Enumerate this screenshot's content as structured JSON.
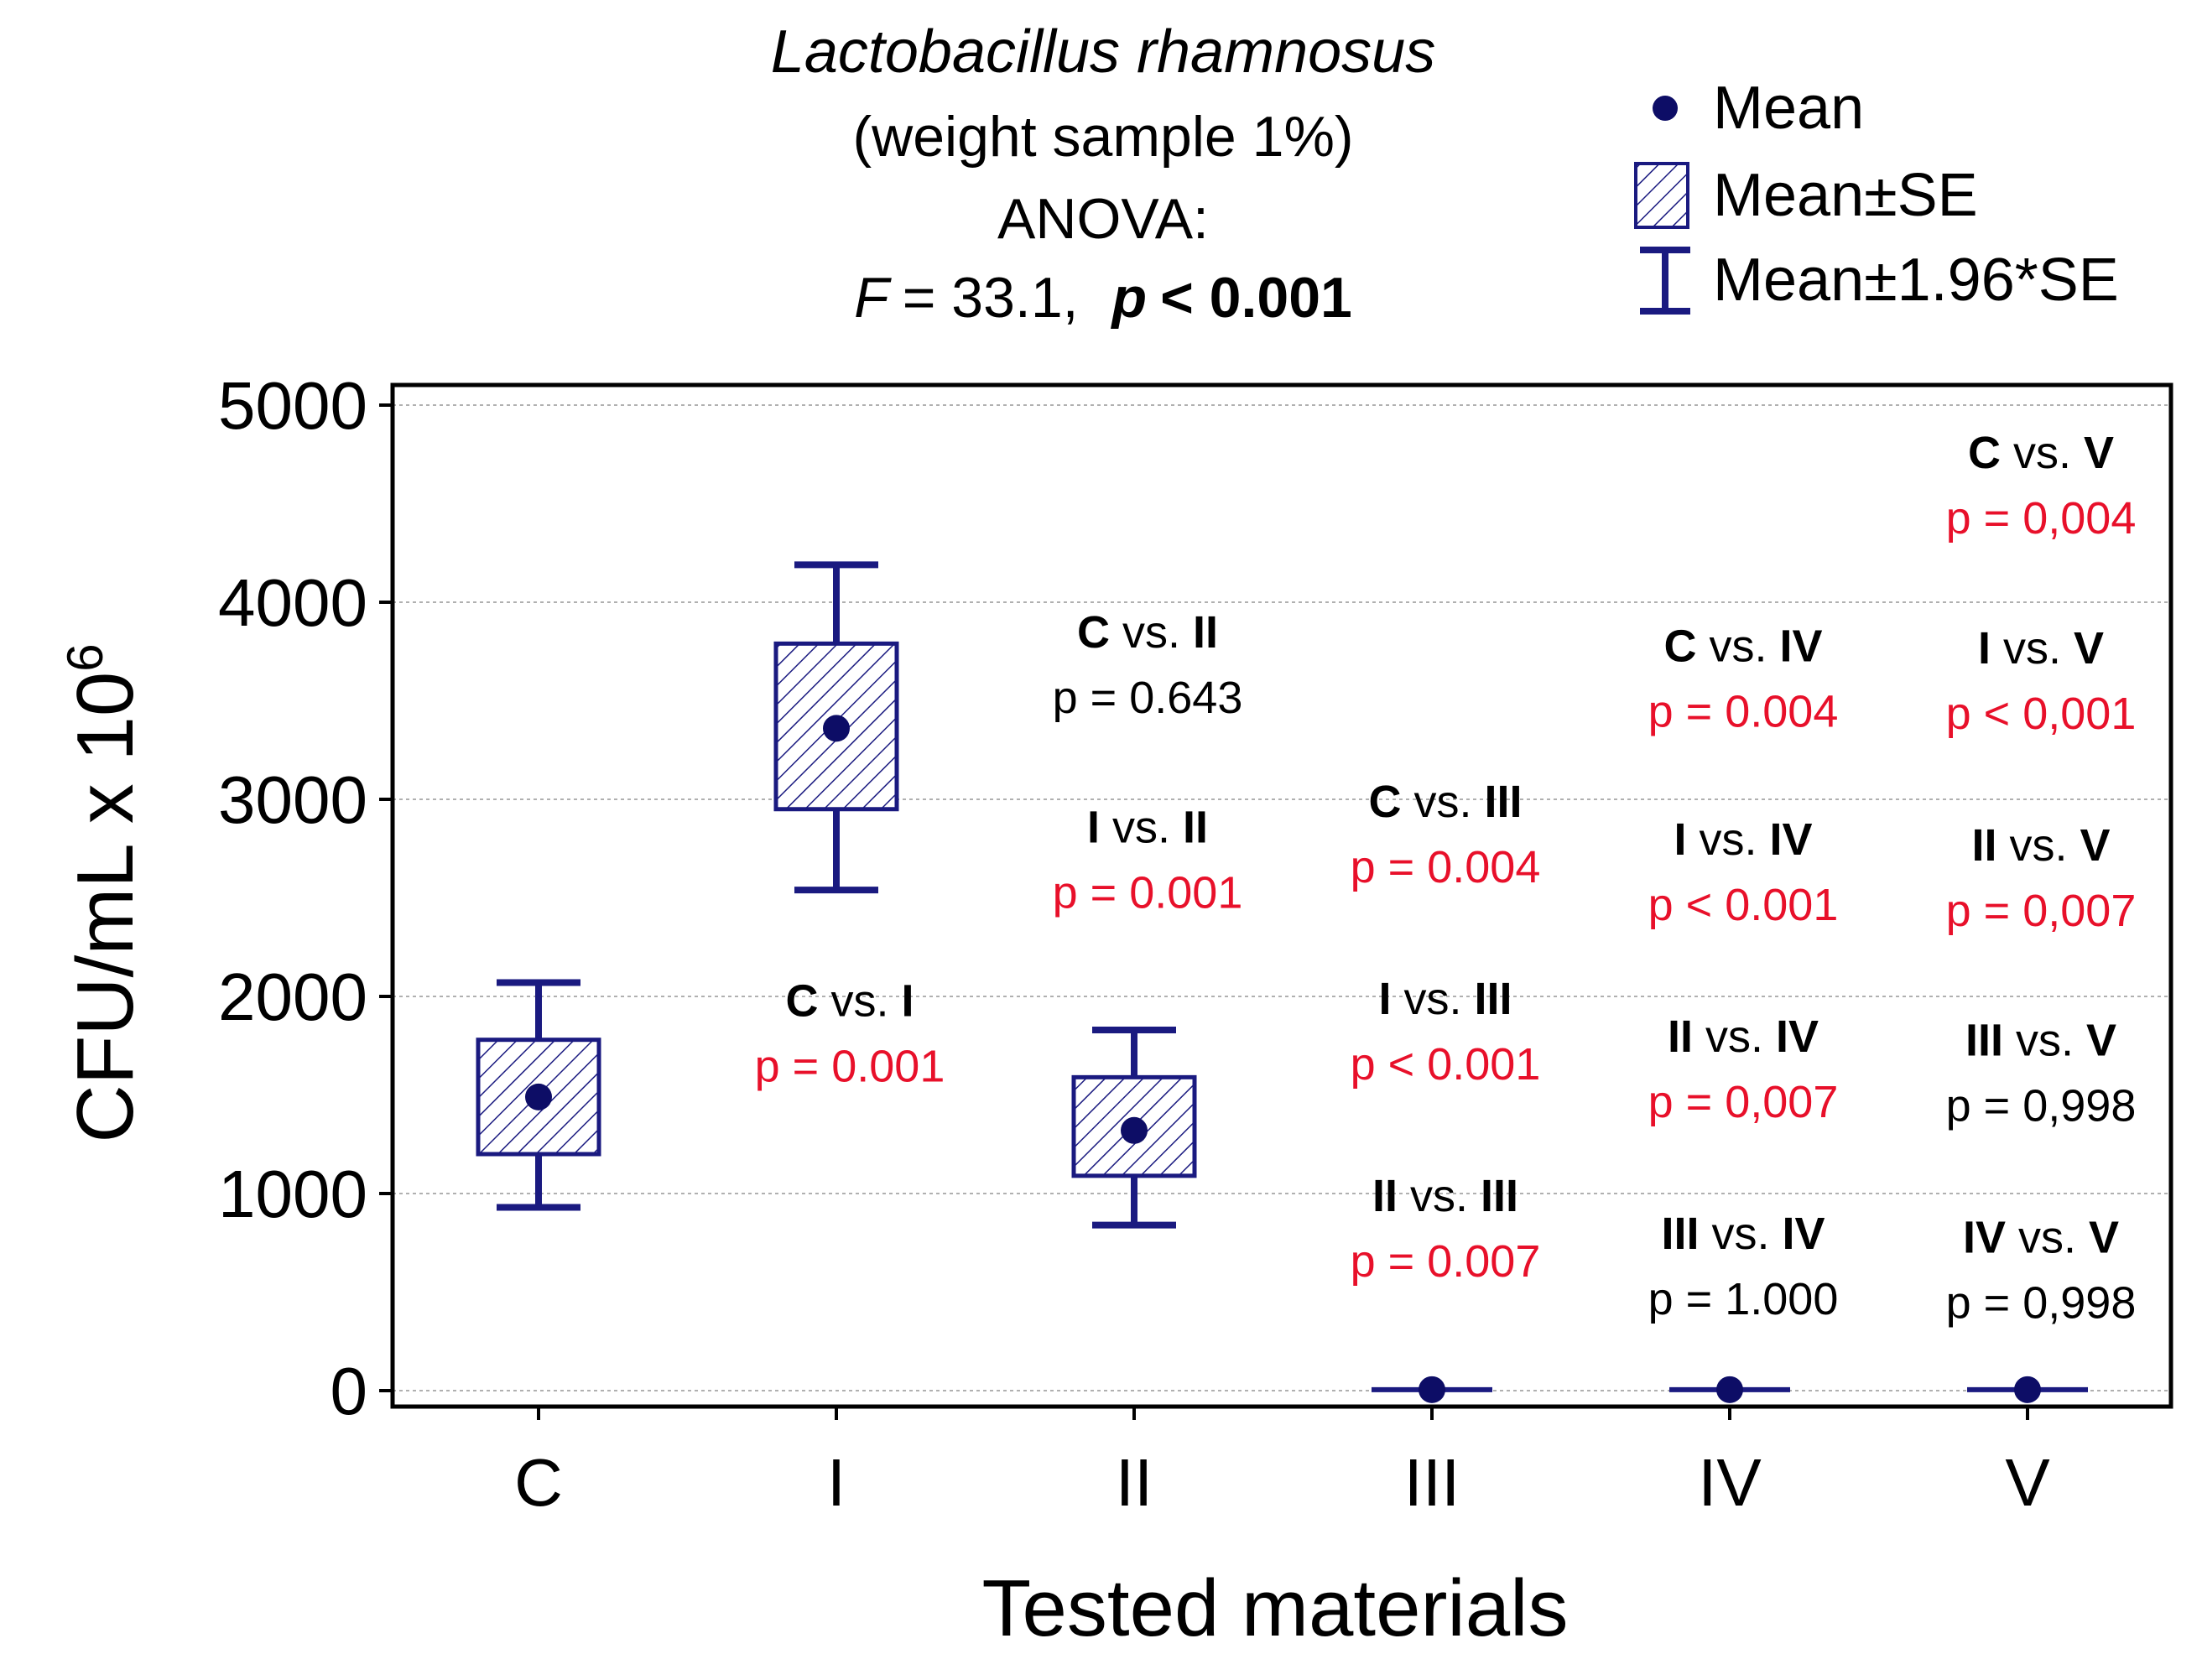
{
  "chart_data": {
    "type": "boxplot",
    "title": "Lactobacillus rhamnosus",
    "subtitle": "(weight sample 1%)",
    "test_label": "ANOVA:",
    "stat_f_label": "F",
    "stat_f_value": "= 33.1,",
    "stat_p_label": "p",
    "stat_p_value": "< 0.001",
    "xlabel": "Tested materials",
    "ylabel": "CFU/mL x 10",
    "ylabel_superscript": "6",
    "ylim": [
      0,
      5000
    ],
    "yticks": [
      0,
      1000,
      2000,
      3000,
      4000,
      5000
    ],
    "grid": true,
    "legend": {
      "position": "top-right",
      "items": [
        {
          "symbol": "mean",
          "label": "Mean"
        },
        {
          "symbol": "box",
          "label": "Mean±SE"
        },
        {
          "symbol": "whisker",
          "label": "Mean±1.96*SE"
        }
      ]
    },
    "categories": [
      "C",
      "I",
      "II",
      "III",
      "IV",
      "V"
    ],
    "series": [
      {
        "category": "C",
        "mean": 1490,
        "se_low": 1200,
        "se_high": 1780,
        "ci_low": 930,
        "ci_high": 2070
      },
      {
        "category": "I",
        "mean": 3360,
        "se_low": 2950,
        "se_high": 3790,
        "ci_low": 2540,
        "ci_high": 4190
      },
      {
        "category": "II",
        "mean": 1320,
        "se_low": 1090,
        "se_high": 1590,
        "ci_low": 840,
        "ci_high": 1830
      },
      {
        "category": "III",
        "mean": 5,
        "se_low": 5,
        "se_high": 5,
        "ci_low": 5,
        "ci_high": 5
      },
      {
        "category": "IV",
        "mean": 5,
        "se_low": 5,
        "se_high": 5,
        "ci_low": 5,
        "ci_high": 5
      },
      {
        "category": "V",
        "mean": 5,
        "se_low": 5,
        "se_high": 5,
        "ci_low": 5,
        "ci_high": 5
      }
    ],
    "annotations": [
      {
        "column": "I",
        "a": "C",
        "b": "I",
        "vs": "vs.",
        "p_text": "p = 0.001",
        "significant": true,
        "y_anchor": 1900
      },
      {
        "column": "II",
        "a": "C",
        "b": "II",
        "vs": "vs.",
        "p_text": "p = 0.643",
        "significant": false,
        "y_anchor": 3770
      },
      {
        "column": "II",
        "a": "I",
        "b": "II",
        "vs": "vs.",
        "p_text": "p = 0.001",
        "significant": true,
        "y_anchor": 2780
      },
      {
        "column": "III",
        "a": "C",
        "b": "III",
        "vs": "vs.",
        "p_text": "p = 0.004",
        "significant": true,
        "y_anchor": 2910
      },
      {
        "column": "III",
        "a": "I",
        "b": "III",
        "vs": "vs.",
        "p_text": "p < 0.001",
        "significant": true,
        "y_anchor": 1910
      },
      {
        "column": "III",
        "a": "II",
        "b": "III",
        "vs": "vs.",
        "p_text": "p = 0.007",
        "significant": true,
        "y_anchor": 910
      },
      {
        "column": "IV",
        "a": "C",
        "b": "IV",
        "vs": "vs.",
        "p_text": "p = 0.004",
        "significant": true,
        "y_anchor": 3700
      },
      {
        "column": "IV",
        "a": "I",
        "b": "IV",
        "vs": "vs.",
        "p_text": "p < 0.001",
        "significant": true,
        "y_anchor": 2720
      },
      {
        "column": "IV",
        "a": "II",
        "b": "IV",
        "vs": "vs.",
        "p_text": "p = 0,007",
        "significant": true,
        "y_anchor": 1720
      },
      {
        "column": "IV",
        "a": "III",
        "b": "IV",
        "vs": "vs.",
        "p_text": "p = 1.000",
        "significant": false,
        "y_anchor": 720
      },
      {
        "column": "V",
        "a": "C",
        "b": "V",
        "vs": "vs.",
        "p_text": "p = 0,004",
        "significant": true,
        "y_anchor": 4680
      },
      {
        "column": "V",
        "a": "I",
        "b": "V",
        "vs": "vs.",
        "p_text": "p < 0,001",
        "significant": true,
        "y_anchor": 3690
      },
      {
        "column": "V",
        "a": "II",
        "b": "V",
        "vs": "vs.",
        "p_text": "p = 0,007",
        "significant": true,
        "y_anchor": 2690
      },
      {
        "column": "V",
        "a": "III",
        "b": "V",
        "vs": "vs.",
        "p_text": "p = 0,998",
        "significant": false,
        "y_anchor": 1700
      },
      {
        "column": "V",
        "a": "IV",
        "b": "V",
        "vs": "vs.",
        "p_text": "p = 0,998",
        "significant": false,
        "y_anchor": 700
      }
    ],
    "colors": {
      "box": "#1a1a80",
      "mean": "#0d0d66",
      "significant": "#e8102a",
      "nonsignificant": "#000000",
      "axis": "#000000",
      "grid": "#b0b0b0"
    }
  }
}
